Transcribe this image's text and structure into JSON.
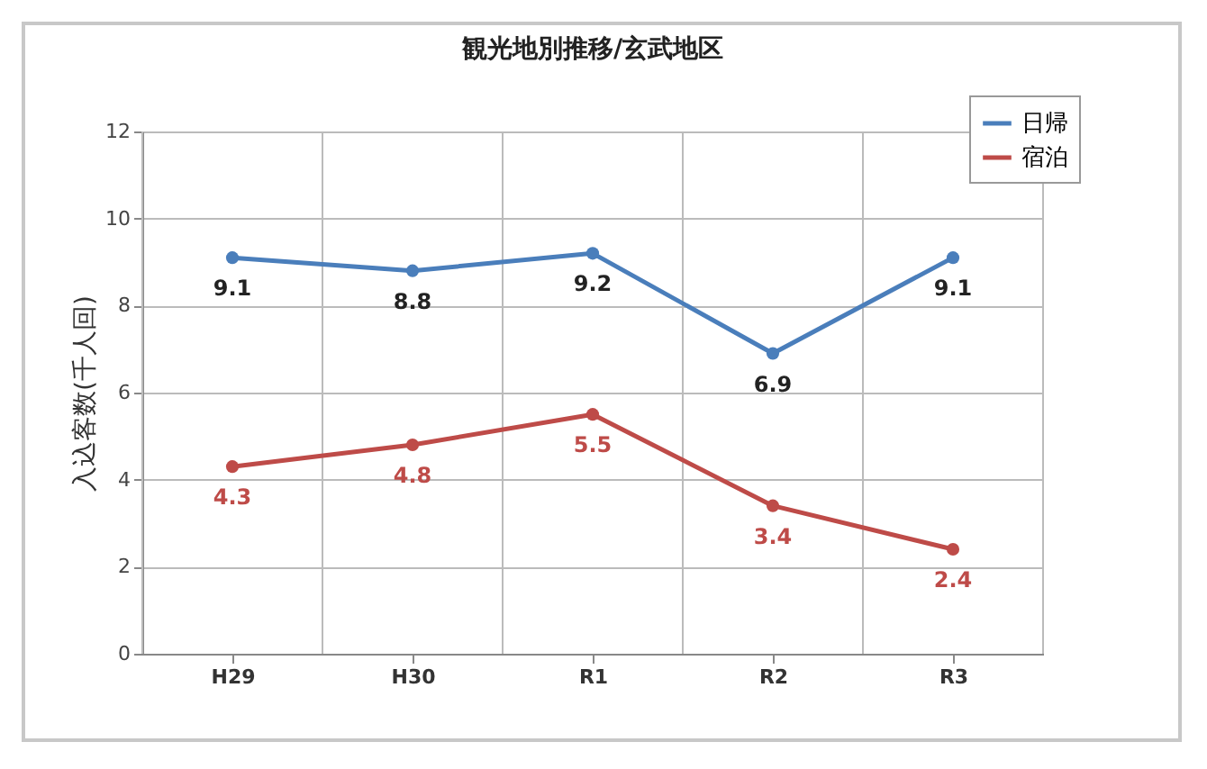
{
  "chart_data": {
    "type": "line",
    "title": "観光地別推移/玄武地区",
    "ylabel": "入込客数(千人回)",
    "categories": [
      "H29",
      "H30",
      "R1",
      "R2",
      "R3"
    ],
    "series": [
      {
        "name": "日帰",
        "color": "#4a7ebb",
        "values": [
          9.1,
          8.8,
          9.2,
          6.9,
          9.1
        ]
      },
      {
        "name": "宿泊",
        "color": "#be4b48",
        "values": [
          4.3,
          4.8,
          5.5,
          3.4,
          2.4
        ]
      }
    ],
    "ylim": [
      0,
      12
    ],
    "yticks": [
      0,
      2,
      4,
      6,
      8,
      10,
      12
    ],
    "grid": true,
    "legend": "top right",
    "marker": "circle",
    "data_labels": true
  }
}
